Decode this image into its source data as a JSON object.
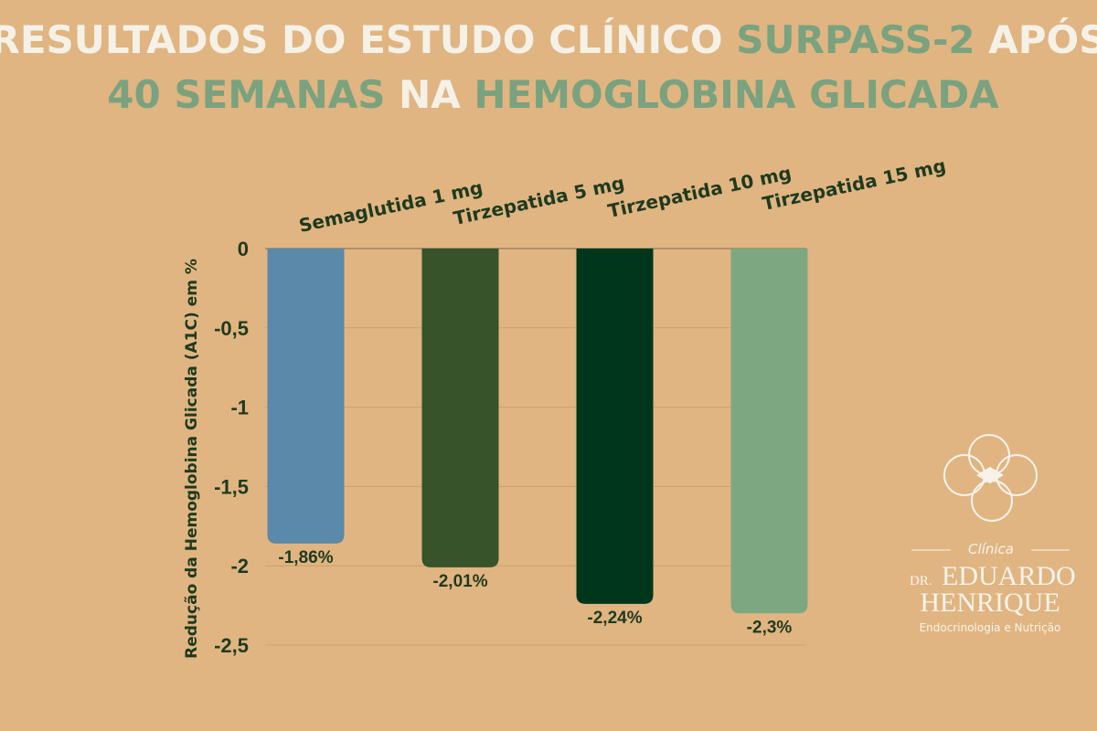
{
  "chart_data": {
    "type": "bar",
    "title": [
      "RESULTADOS DO ESTUDO CLÍNICO",
      "SURPASS-2",
      "APÓS",
      "40 SEMANAS",
      "NA",
      "HEMOGLOBINA GLICADA"
    ],
    "y_label": "Redução da Hemoglobina Glicada (A1C) em %",
    "categories": [
      "Semaglutida 1 mg",
      "Tirzepatida 5 mg",
      "Tirzepatida 10 mg",
      "Tirzepatida 15 mg"
    ],
    "values": [
      -1.86,
      -2.01,
      -2.24,
      -2.3
    ],
    "value_labels": [
      "-1,86%",
      "-2,01%",
      "-2,24%",
      "-2,3%"
    ],
    "colors": [
      "#5b89aa",
      "#36532a",
      "#00361c",
      "#7da781"
    ],
    "ylim": [
      -2.5,
      0
    ],
    "yticks": [
      0,
      {
        "value": -0.5,
        "label": "-0,5"
      },
      -1,
      {
        "value": -1.5,
        "label": "-1,5"
      },
      -2,
      {
        "value": -2.5,
        "label": "-2,5"
      }
    ],
    "grid": true
  },
  "logo": {
    "top": "Clínica",
    "prefix": "DR.",
    "first": "EDUARDO",
    "second": "HENRIQUE",
    "tagline": "Endocrinologia e Nutrição"
  }
}
